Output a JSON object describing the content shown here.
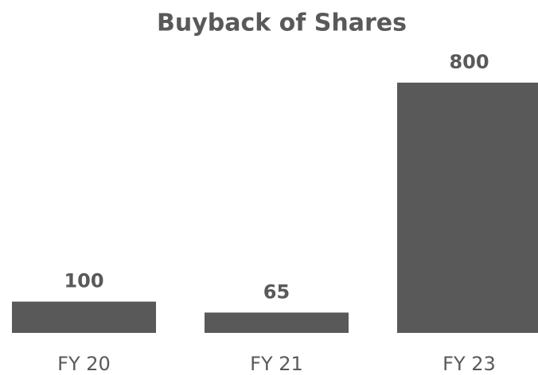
{
  "chart_data": {
    "type": "bar",
    "title": "Buyback of Shares",
    "categories": [
      "FY 20",
      "FY 21",
      "FY 23"
    ],
    "values": [
      100,
      65,
      800
    ],
    "color": "#595959"
  }
}
